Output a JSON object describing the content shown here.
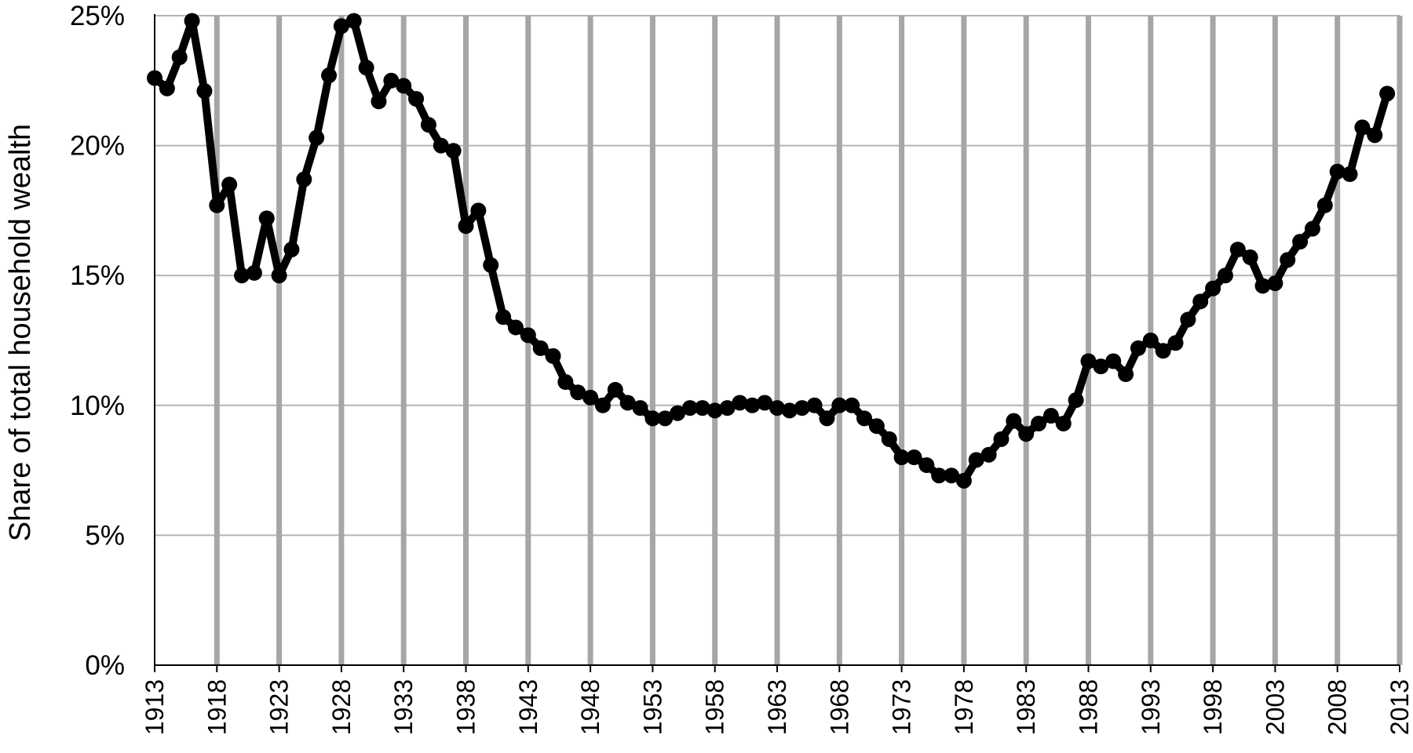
{
  "chart_data": {
    "type": "line",
    "title": "",
    "xlabel": "",
    "ylabel": "Share of total household wealth",
    "xlim": [
      1913,
      2013
    ],
    "ylim": [
      0,
      25
    ],
    "y_ticks": [
      0,
      5,
      10,
      15,
      20,
      25
    ],
    "y_tick_labels": [
      "0%",
      "5%",
      "10%",
      "15%",
      "20%",
      "25%"
    ],
    "x_ticks": [
      1913,
      1918,
      1923,
      1928,
      1933,
      1938,
      1943,
      1948,
      1953,
      1958,
      1963,
      1968,
      1973,
      1978,
      1983,
      1988,
      1993,
      1998,
      2003,
      2008,
      2013
    ],
    "x_tick_labels": [
      "1913",
      "1918",
      "1923",
      "1928",
      "1933",
      "1938",
      "1943",
      "1948",
      "1953",
      "1958",
      "1963",
      "1968",
      "1973",
      "1978",
      "1983",
      "1988",
      "1993",
      "1998",
      "2003",
      "2008",
      "2013"
    ],
    "grid": {
      "vertical": true,
      "horizontal": true
    },
    "legend": "none",
    "series": [
      {
        "color": "#000000",
        "x": [
          1913,
          1914,
          1915,
          1916,
          1917,
          1918,
          1919,
          1920,
          1921,
          1922,
          1923,
          1924,
          1925,
          1926,
          1927,
          1928,
          1929,
          1930,
          1931,
          1932,
          1933,
          1934,
          1935,
          1936,
          1937,
          1938,
          1939,
          1940,
          1941,
          1942,
          1943,
          1944,
          1945,
          1946,
          1947,
          1948,
          1949,
          1950,
          1951,
          1952,
          1953,
          1954,
          1955,
          1956,
          1957,
          1958,
          1959,
          1960,
          1961,
          1962,
          1963,
          1964,
          1965,
          1966,
          1967,
          1968,
          1969,
          1970,
          1971,
          1972,
          1973,
          1974,
          1975,
          1976,
          1977,
          1978,
          1979,
          1980,
          1981,
          1982,
          1983,
          1984,
          1985,
          1986,
          1987,
          1988,
          1989,
          1990,
          1991,
          1992,
          1993,
          1994,
          1995,
          1996,
          1997,
          1998,
          1999,
          2000,
          2001,
          2002,
          2003,
          2004,
          2005,
          2006,
          2007,
          2008,
          2009,
          2010,
          2011,
          2012
        ],
        "values": [
          22.6,
          22.2,
          23.4,
          24.8,
          22.1,
          17.7,
          18.5,
          15.0,
          15.1,
          17.2,
          15.0,
          16.0,
          18.7,
          20.3,
          22.7,
          24.6,
          24.8,
          23.0,
          21.7,
          22.5,
          22.3,
          21.8,
          20.8,
          20.0,
          19.8,
          16.9,
          17.5,
          15.4,
          13.4,
          13.0,
          12.7,
          12.2,
          11.9,
          10.9,
          10.5,
          10.3,
          10.0,
          10.6,
          10.1,
          9.9,
          9.5,
          9.5,
          9.7,
          9.9,
          9.9,
          9.8,
          9.9,
          10.1,
          10.0,
          10.1,
          9.9,
          9.8,
          9.9,
          10.0,
          9.5,
          10.0,
          10.0,
          9.5,
          9.2,
          8.7,
          8.0,
          8.0,
          7.7,
          7.3,
          7.3,
          7.1,
          7.9,
          8.1,
          8.7,
          9.4,
          8.9,
          9.3,
          9.6,
          9.3,
          10.2,
          11.7,
          11.5,
          11.7,
          11.2,
          12.2,
          12.5,
          12.1,
          12.4,
          13.3,
          14.0,
          14.5,
          15.0,
          16.0,
          15.7,
          14.6,
          14.7,
          15.6,
          16.3,
          16.8,
          17.7,
          19.0,
          18.9,
          20.7,
          20.4,
          22.0
        ]
      }
    ]
  }
}
